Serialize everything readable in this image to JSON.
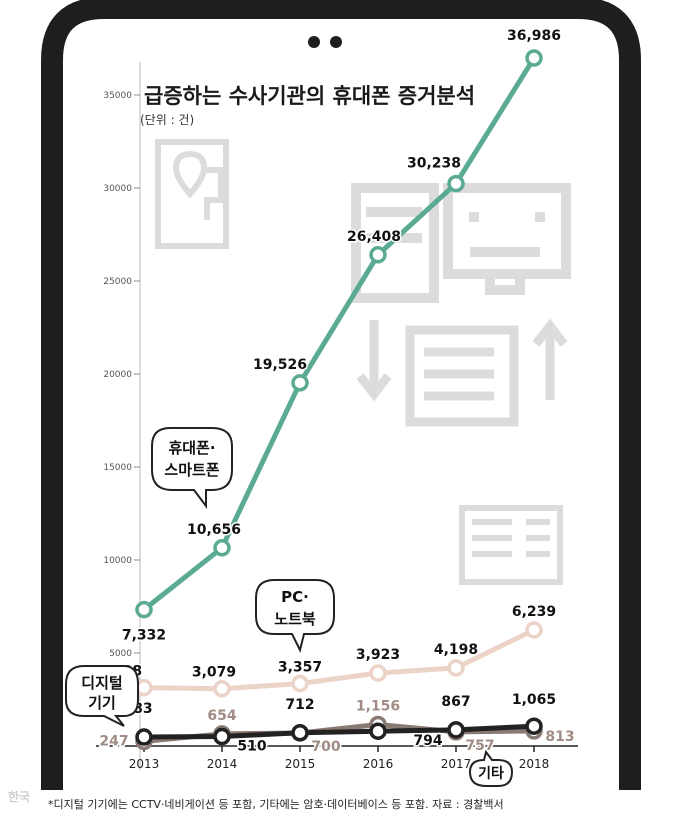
{
  "chart_data": {
    "type": "line",
    "title": "급증하는 수사기관의 휴대폰 증거분석",
    "subtitle": "(단위 : 건)",
    "x": [
      "2013",
      "2014",
      "2015",
      "2016",
      "2017",
      "2018"
    ],
    "ylim": [
      0,
      37000
    ],
    "yticks": [
      5000,
      10000,
      15000,
      20000,
      25000,
      30000,
      35000
    ],
    "ytick_labels": [
      "5000",
      "10000",
      "15000",
      "20000",
      "25000",
      "30000",
      "35000"
    ],
    "grid": false,
    "series": [
      {
        "name": "휴대폰·스마트폰",
        "color": "#5bab94",
        "values": [
          7332,
          10656,
          19526,
          26408,
          30238,
          36986
        ],
        "labels": [
          "7,332",
          "10,656",
          "19,526",
          "26,408",
          "30,238",
          "36,986"
        ]
      },
      {
        "name": "PC·노트북",
        "color": "#ecd3c8",
        "values": [
          3138,
          3079,
          3357,
          3923,
          4198,
          6239
        ],
        "labels": [
          "3,138",
          "3,079",
          "3,357",
          "3,923",
          "4,198",
          "6,239"
        ]
      },
      {
        "name": "디지털 기기",
        "color": "#222222",
        "values": [
          483,
          510,
          712,
          794,
          867,
          1065
        ],
        "labels": [
          "483",
          "510",
          "712",
          "794",
          "867",
          "1,065"
        ]
      },
      {
        "name": "기타",
        "color": "#8a7a74",
        "values": [
          247,
          654,
          700,
          1156,
          757,
          813
        ],
        "labels": [
          "247",
          "654",
          "700",
          "1,156",
          "757",
          "813"
        ]
      }
    ],
    "callouts": {
      "phone": [
        "휴대폰·",
        "스마트폰"
      ],
      "pc": [
        "PC·",
        "노트북"
      ],
      "digital": [
        "디지털",
        "기기"
      ],
      "other": [
        "기타"
      ]
    }
  },
  "footnote": "*디지털 기기에는 CCTV·네비게이션 등 포함, 기타에는 암호·데이터베이스 등 포함. 자료 : 경찰백서",
  "watermark": "한국"
}
